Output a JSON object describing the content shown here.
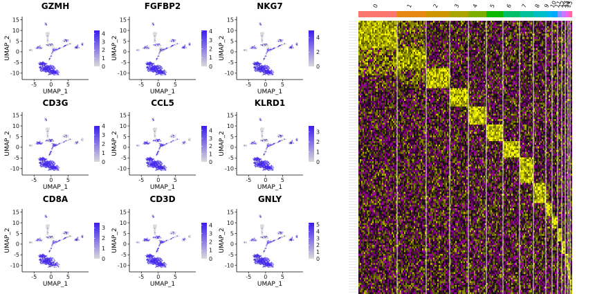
{
  "chart_data": {
    "type": "composite",
    "feature_plots": {
      "type": "scatter",
      "xlabel": "UMAP_1",
      "ylabel": "UMAP_2",
      "x_ticks": [
        -5,
        0,
        5
      ],
      "y_ticks": [
        -10,
        -5,
        0,
        5,
        10,
        15
      ],
      "xlim": [
        -8.5,
        11
      ],
      "ylim": [
        -13,
        16.5
      ],
      "low_color": "#d9d9d9",
      "high_color": "#3a1cf0",
      "panels": [
        {
          "gene": "GZMH",
          "legend_ticks": [
            "4",
            "3",
            "2",
            "1",
            "0"
          ],
          "max": 4.4,
          "hotspot": "lower"
        },
        {
          "gene": "FGFBP2",
          "legend_ticks": [
            "4",
            "3",
            "2",
            "1",
            "0"
          ],
          "max": 4.1,
          "hotspot": "lower"
        },
        {
          "gene": "NKG7",
          "legend_ticks": [
            "4",
            "2",
            "0"
          ],
          "max": 5.0,
          "hotspot": "lower"
        },
        {
          "gene": "CD3G",
          "legend_ticks": [
            "4",
            "3",
            "2",
            "1",
            "0"
          ],
          "max": 4.0,
          "hotspot": "lower-wide"
        },
        {
          "gene": "CCL5",
          "legend_ticks": [
            "4",
            "3",
            "2",
            "1",
            "0"
          ],
          "max": 4.6,
          "hotspot": "lower-wide"
        },
        {
          "gene": "KLRD1",
          "legend_ticks": [
            "3",
            "2",
            "1",
            "0"
          ],
          "max": 3.6,
          "hotspot": "lower"
        },
        {
          "gene": "CD8A",
          "legend_ticks": [
            "3",
            "2",
            "1",
            "0"
          ],
          "max": 3.5,
          "hotspot": "lower-left"
        },
        {
          "gene": "CD3D",
          "legend_ticks": [
            "4",
            "3",
            "2",
            "1",
            "0"
          ],
          "max": 4.3,
          "hotspot": "lower-wide"
        },
        {
          "gene": "GNLY",
          "legend_ticks": [
            "5",
            "4",
            "3",
            "2",
            "1",
            "0"
          ],
          "max": 5.3,
          "hotspot": "lower"
        }
      ]
    },
    "heatmap": {
      "type": "heatmap",
      "clusters": [
        "0",
        "1",
        "2",
        "3",
        "4",
        "5",
        "6",
        "7",
        "8",
        "9",
        "10",
        "11",
        "12",
        "13",
        "14",
        "15"
      ],
      "cluster_widths": [
        56,
        42,
        34,
        27,
        26,
        24,
        24,
        20,
        18,
        9,
        8,
        6,
        5,
        4,
        3,
        3
      ],
      "cluster_colors": [
        "#f8766d",
        "#e68613",
        "#cd9600",
        "#aba300",
        "#7cae00",
        "#0cb702",
        "#00be67",
        "#00c19a",
        "#00bfc4",
        "#00b8e7",
        "#00a9ff",
        "#8494ff",
        "#c77cff",
        "#ed68ed",
        "#ff61cc",
        "#ff68a1"
      ],
      "gene_count": 300,
      "color_low": "#ff00ff",
      "color_mid": "#000000",
      "color_high": "#ffff00"
    }
  }
}
